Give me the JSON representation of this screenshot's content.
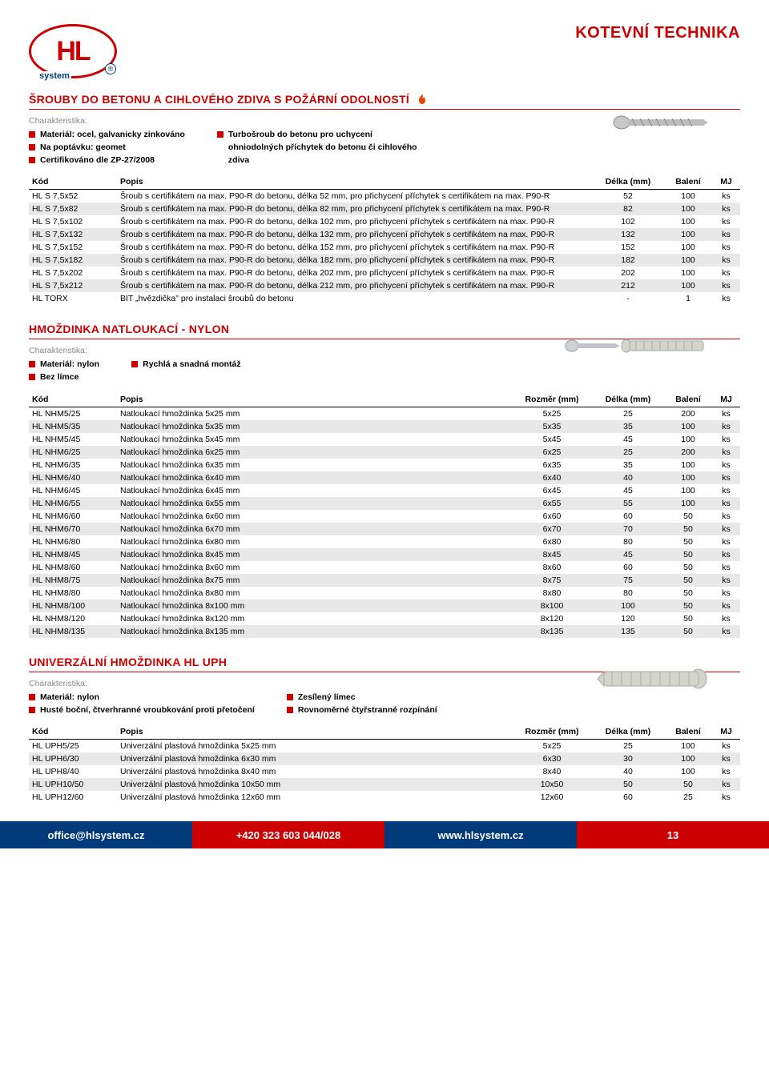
{
  "header": {
    "brand": "HL",
    "brand_sub": "system",
    "title": "KOTEVNÍ TECHNIKA"
  },
  "section1": {
    "title": "ŠROUBY DO BETONU A CIHLOVÉHO ZDIVA S POŽÁRNÍ ODOLNOSTÍ",
    "char_label": "Charakteristika:",
    "bullets_left": [
      "Materiál: ocel, galvanicky zinkováno",
      "Na poptávku: geomet",
      "Certifikováno dle ZP-27/2008"
    ],
    "bullets_right": [
      "Turbošroub do betonu pro uchycení ohniodolných příchytek do betonu či cihlového zdiva"
    ],
    "headers": [
      "Kód",
      "Popis",
      "Délka (mm)",
      "Balení",
      "MJ"
    ],
    "rows": [
      {
        "kod": "HL S 7,5x52",
        "popis": "Šroub s certifikátem na max. P90-R do betonu, délka 52 mm,  pro přichycení příchytek s certifikátem na max. P90-R",
        "delka": "52",
        "baleni": "100",
        "mj": "ks"
      },
      {
        "kod": "HL S 7,5x82",
        "popis": "Šroub s certifikátem na max. P90-R do betonu, délka 82 mm,  pro přichycení příchytek s certifikátem na max. P90-R",
        "delka": "82",
        "baleni": "100",
        "mj": "ks"
      },
      {
        "kod": "HL S 7,5x102",
        "popis": "Šroub s certifikátem na max. P90-R do betonu, délka 102 mm,  pro přichycení příchytek s certifikátem na max. P90-R",
        "delka": "102",
        "baleni": "100",
        "mj": "ks"
      },
      {
        "kod": "HL S 7,5x132",
        "popis": "Šroub s certifikátem na max. P90-R do betonu, délka 132 mm,  pro přichycení příchytek s certifikátem na max. P90-R",
        "delka": "132",
        "baleni": "100",
        "mj": "ks"
      },
      {
        "kod": "HL S 7,5x152",
        "popis": "Šroub s certifikátem na max. P90-R do betonu, délka 152 mm,  pro přichycení příchytek s certifikátem na max. P90-R",
        "delka": "152",
        "baleni": "100",
        "mj": "ks"
      },
      {
        "kod": "HL S 7,5x182",
        "popis": "Šroub s certifikátem na max. P90-R do betonu, délka 182 mm,  pro přichycení příchytek s certifikátem na max. P90-R",
        "delka": "182",
        "baleni": "100",
        "mj": "ks"
      },
      {
        "kod": "HL S 7,5x202",
        "popis": "Šroub s certifikátem na max. P90-R do betonu, délka 202 mm,  pro přichycení příchytek s certifikátem na max. P90-R",
        "delka": "202",
        "baleni": "100",
        "mj": "ks"
      },
      {
        "kod": "HL S 7,5x212",
        "popis": "Šroub s certifikátem na max. P90-R do betonu, délka 212 mm,  pro přichycení příchytek s certifikátem na max. P90-R",
        "delka": "212",
        "baleni": "100",
        "mj": "ks"
      },
      {
        "kod": "HL TORX",
        "popis": "BIT „hvězdička\" pro instalaci šroubů do betonu",
        "delka": "-",
        "baleni": "1",
        "mj": "ks"
      }
    ]
  },
  "section2": {
    "title": "HMOŽDINKA NATLOUKACÍ - NYLON",
    "char_label": "Charakteristika:",
    "bullets_left": [
      "Materiál: nylon",
      "Bez límce"
    ],
    "bullets_right": [
      "Rychlá a snadná montáž"
    ],
    "headers": [
      "Kód",
      "Popis",
      "Rozměr (mm)",
      "Délka (mm)",
      "Balení",
      "MJ"
    ],
    "rows": [
      {
        "kod": "HL NHM5/25",
        "popis": "Natloukací hmoždinka 5x25 mm",
        "rozmer": "5x25",
        "delka": "25",
        "baleni": "200",
        "mj": "ks"
      },
      {
        "kod": "HL NHM5/35",
        "popis": "Natloukací hmoždinka 5x35 mm",
        "rozmer": "5x35",
        "delka": "35",
        "baleni": "100",
        "mj": "ks"
      },
      {
        "kod": "HL NHM5/45",
        "popis": "Natloukací hmoždinka 5x45 mm",
        "rozmer": "5x45",
        "delka": "45",
        "baleni": "100",
        "mj": "ks"
      },
      {
        "kod": "HL NHM6/25",
        "popis": "Natloukací hmoždinka 6x25 mm",
        "rozmer": "6x25",
        "delka": "25",
        "baleni": "200",
        "mj": "ks"
      },
      {
        "kod": "HL NHM6/35",
        "popis": "Natloukací hmoždinka 6x35 mm",
        "rozmer": "6x35",
        "delka": "35",
        "baleni": "100",
        "mj": "ks"
      },
      {
        "kod": "HL NHM6/40",
        "popis": "Natloukací hmoždinka 6x40 mm",
        "rozmer": "6x40",
        "delka": "40",
        "baleni": "100",
        "mj": "ks"
      },
      {
        "kod": "HL NHM6/45",
        "popis": "Natloukací hmoždinka 6x45 mm",
        "rozmer": "6x45",
        "delka": "45",
        "baleni": "100",
        "mj": "ks"
      },
      {
        "kod": "HL NHM6/55",
        "popis": "Natloukací hmoždinka 6x55 mm",
        "rozmer": "6x55",
        "delka": "55",
        "baleni": "100",
        "mj": "ks"
      },
      {
        "kod": "HL NHM6/60",
        "popis": "Natloukací hmoždinka 6x60 mm",
        "rozmer": "6x60",
        "delka": "60",
        "baleni": "50",
        "mj": "ks"
      },
      {
        "kod": "HL NHM6/70",
        "popis": "Natloukací hmoždinka 6x70 mm",
        "rozmer": "6x70",
        "delka": "70",
        "baleni": "50",
        "mj": "ks"
      },
      {
        "kod": "HL NHM6/80",
        "popis": "Natloukací hmoždinka 6x80 mm",
        "rozmer": "6x80",
        "delka": "80",
        "baleni": "50",
        "mj": "ks"
      },
      {
        "kod": "HL NHM8/45",
        "popis": "Natloukací hmoždinka 8x45 mm",
        "rozmer": "8x45",
        "delka": "45",
        "baleni": "50",
        "mj": "ks"
      },
      {
        "kod": "HL NHM8/60",
        "popis": "Natloukací hmoždinka 8x60 mm",
        "rozmer": "8x60",
        "delka": "60",
        "baleni": "50",
        "mj": "ks"
      },
      {
        "kod": "HL NHM8/75",
        "popis": "Natloukací hmoždinka 8x75 mm",
        "rozmer": "8x75",
        "delka": "75",
        "baleni": "50",
        "mj": "ks"
      },
      {
        "kod": "HL NHM8/80",
        "popis": "Natloukací hmoždinka 8x80 mm",
        "rozmer": "8x80",
        "delka": "80",
        "baleni": "50",
        "mj": "ks"
      },
      {
        "kod": "HL NHM8/100",
        "popis": "Natloukací hmoždinka 8x100 mm",
        "rozmer": "8x100",
        "delka": "100",
        "baleni": "50",
        "mj": "ks"
      },
      {
        "kod": "HL NHM8/120",
        "popis": "Natloukací hmoždinka 8x120 mm",
        "rozmer": "8x120",
        "delka": "120",
        "baleni": "50",
        "mj": "ks"
      },
      {
        "kod": "HL NHM8/135",
        "popis": "Natloukací hmoždinka 8x135 mm",
        "rozmer": "8x135",
        "delka": "135",
        "baleni": "50",
        "mj": "ks"
      }
    ]
  },
  "section3": {
    "title": "UNIVERZÁLNÍ HMOŽDINKA HL UPH",
    "char_label": "Charakteristika:",
    "bullets_left": [
      "Materiál: nylon",
      "Husté boční, čtverhranné vroubkování proti přetočení"
    ],
    "bullets_right": [
      "Zesílený límec",
      "Rovnoměrné čtyřstranné rozpínání"
    ],
    "headers": [
      "Kód",
      "Popis",
      "Rozměr (mm)",
      "Délka (mm)",
      "Balení",
      "MJ"
    ],
    "rows": [
      {
        "kod": "HL UPH5/25",
        "popis": "Univerzální plastová hmoždinka 5x25 mm",
        "rozmer": "5x25",
        "delka": "25",
        "baleni": "100",
        "mj": "ks"
      },
      {
        "kod": "HL UPH6/30",
        "popis": "Univerzální plastová hmoždinka 6x30 mm",
        "rozmer": "6x30",
        "delka": "30",
        "baleni": "100",
        "mj": "ks"
      },
      {
        "kod": "HL UPH8/40",
        "popis": "Univerzální plastová hmoždinka 8x40 mm",
        "rozmer": "8x40",
        "delka": "40",
        "baleni": "100",
        "mj": "ks"
      },
      {
        "kod": "HL UPH10/50",
        "popis": "Univerzální plastová hmoždinka 10x50 mm",
        "rozmer": "10x50",
        "delka": "50",
        "baleni": "50",
        "mj": "ks"
      },
      {
        "kod": "HL UPH12/60",
        "popis": "Univerzální plastová hmoždinka 12x60 mm",
        "rozmer": "12x60",
        "delka": "60",
        "baleni": "25",
        "mj": "ks"
      }
    ]
  },
  "footer": {
    "email": "office@hlsystem.cz",
    "phone": "+420 323 603 044/028",
    "web": "www.hlsystem.cz",
    "page": "13"
  }
}
